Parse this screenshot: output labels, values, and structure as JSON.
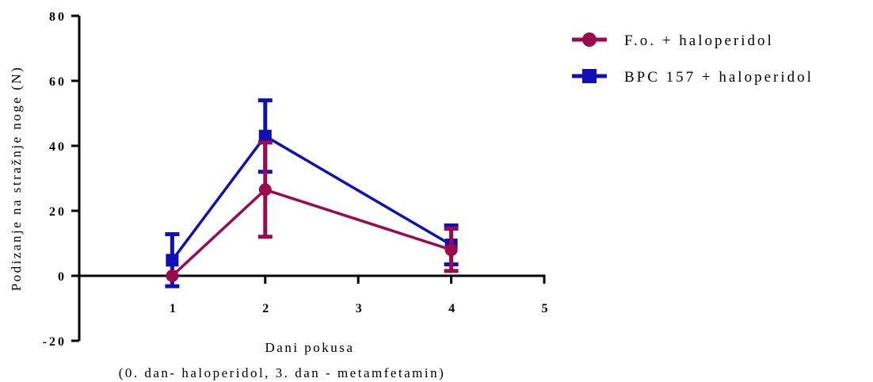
{
  "chart_data": {
    "type": "line",
    "xlabel": "Dani pokusa",
    "xlabel2": "(0. dan- haloperidol, 3. dan - metamfetamin)",
    "ylabel": "Podizanje na stražnje noge (N)",
    "xlim": [
      0,
      5
    ],
    "ylim": [
      -20,
      80
    ],
    "xticks": [
      1,
      2,
      3,
      4,
      5
    ],
    "yticks": [
      -20,
      0,
      20,
      40,
      60,
      80
    ],
    "xtick_labels": [
      "1",
      "2",
      "3",
      "4",
      "5"
    ],
    "ytick_labels": [
      "-20",
      "0",
      "20",
      "40",
      "60",
      "80"
    ],
    "x": [
      1,
      2,
      4
    ],
    "series": [
      {
        "name": "F.o. + haloperidol",
        "color": "#9b0a4e",
        "marker": "circle",
        "values": [
          0,
          26.5,
          8
        ],
        "error": [
          0,
          14.5,
          6.5
        ]
      },
      {
        "name": "BPC 157 + haloperidol",
        "color": "#1010b8",
        "marker": "square",
        "values": [
          4.8,
          43,
          9.5
        ],
        "error": [
          8,
          11,
          6
        ]
      }
    ],
    "legend_position": "top-right"
  }
}
